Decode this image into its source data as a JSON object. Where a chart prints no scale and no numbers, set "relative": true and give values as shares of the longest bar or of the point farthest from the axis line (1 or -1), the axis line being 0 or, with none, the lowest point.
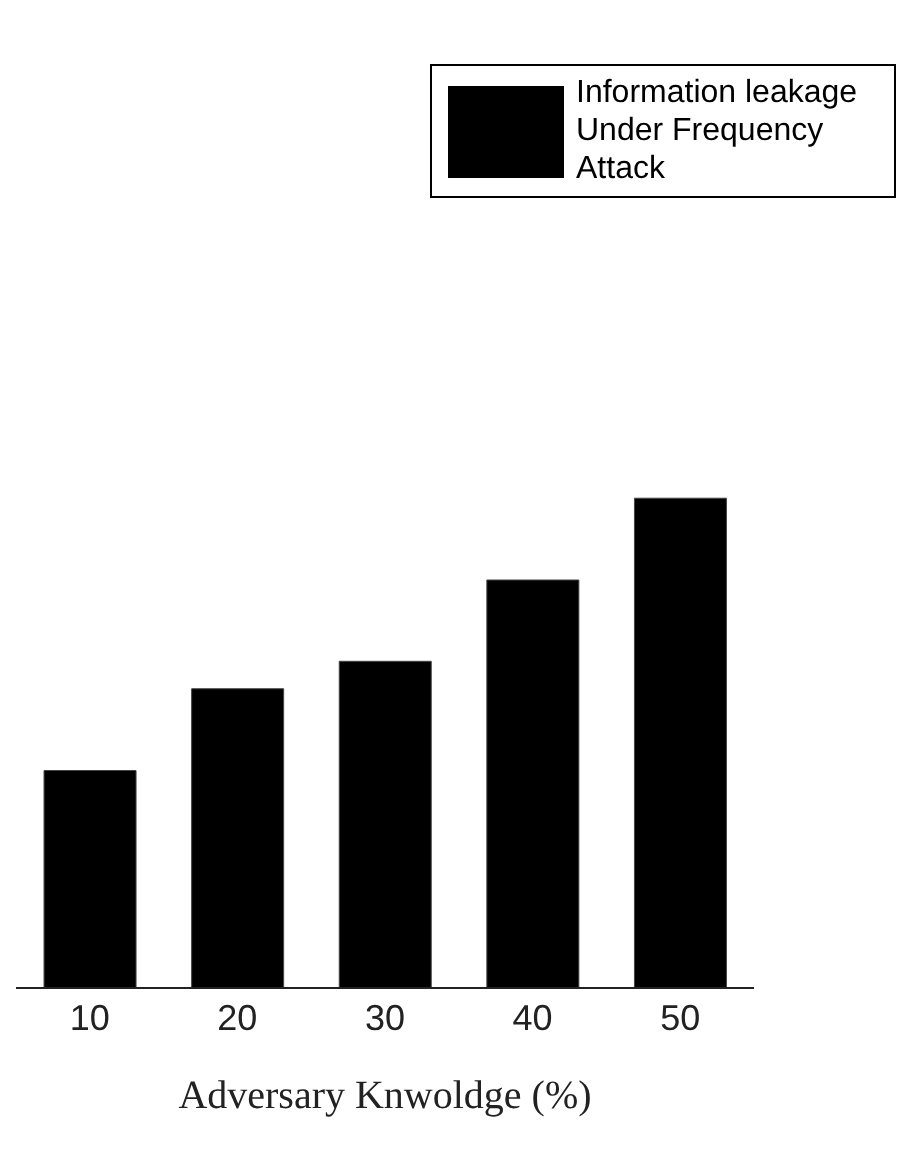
{
  "chart_data": {
    "type": "bar",
    "xlabel": "Adversary Knwoldge (%)",
    "categories": [
      "10",
      "20",
      "30",
      "40",
      "50"
    ],
    "series": [
      {
        "name": "Information leakage Under Frequency Attack",
        "color": "#000000",
        "values": [
          0.444,
          0.611,
          0.667,
          0.833,
          1
        ]
      }
    ],
    "relative": true,
    "legend": "top right",
    "grid": false
  }
}
